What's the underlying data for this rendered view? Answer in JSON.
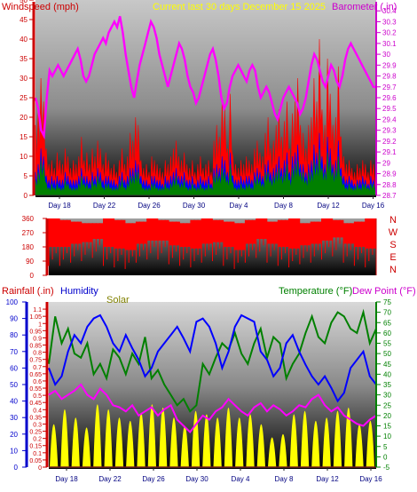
{
  "chart_data": [
    {
      "type": "line",
      "title": "Current last 30 days December 15 2025",
      "left_axis_title": "Windspeed (mph)",
      "right_axis_title": "Barometer (.in)",
      "x_ticks": [
        "Day 18",
        "Day 22",
        "Day 26",
        "Day 30",
        "Day 4",
        "Day 8",
        "Day 12",
        "Day 16"
      ],
      "y_left": {
        "min": 0,
        "max": 50,
        "ticks": [
          0,
          5,
          10,
          15,
          20,
          25,
          30,
          35,
          40,
          45,
          50
        ]
      },
      "y_right": {
        "min": 28.7,
        "max": 30.5,
        "ticks": [
          "28.7",
          "28.8",
          "28.9",
          "29",
          "29.1",
          "29.2",
          "29.3",
          "29.4",
          "29.5",
          "29.6",
          "29.7",
          "29.8",
          "29.9",
          "30",
          "30.1",
          "30.2",
          "30.3",
          "30.4"
        ]
      },
      "series": [
        {
          "name": "Wind gust",
          "axis": "left",
          "color": "#ff0000",
          "style": "filled-spiky",
          "values": [
            18,
            22,
            30,
            24,
            12,
            8,
            9,
            7,
            11,
            9,
            8,
            12,
            10,
            7,
            9,
            8,
            10,
            15,
            9,
            11,
            8,
            12,
            10,
            14,
            12,
            8,
            11,
            9,
            7,
            8,
            6,
            9,
            12,
            8,
            10,
            16,
            14,
            20,
            18,
            9,
            7,
            8,
            6,
            10,
            9,
            8,
            7,
            6,
            9,
            8,
            10,
            12,
            14,
            10,
            9,
            11,
            8,
            7,
            9,
            6,
            8,
            10,
            7,
            8,
            9,
            6,
            14,
            18,
            15,
            24,
            22,
            12,
            26,
            10,
            8,
            7,
            9,
            8,
            10,
            9,
            8,
            12,
            14,
            11,
            10,
            16,
            20,
            12,
            14,
            18,
            22,
            15,
            19,
            24,
            12,
            21,
            24,
            30,
            18,
            16,
            12,
            18,
            20,
            30,
            24,
            40,
            22,
            18,
            35,
            26,
            18,
            20,
            33,
            15,
            10,
            8,
            9,
            7,
            6,
            8,
            7,
            9,
            8,
            6,
            9,
            8
          ]
        },
        {
          "name": "Wind speed",
          "axis": "left",
          "color": "#0000ff",
          "style": "filled-spiky",
          "values": [
            6,
            8,
            12,
            10,
            5,
            4,
            5,
            4,
            5,
            4,
            4,
            6,
            5,
            4,
            4,
            4,
            5,
            7,
            5,
            5,
            4,
            6,
            5,
            7,
            6,
            4,
            5,
            5,
            4,
            4,
            3,
            5,
            6,
            4,
            5,
            7,
            7,
            9,
            8,
            5,
            4,
            4,
            3,
            5,
            5,
            4,
            4,
            3,
            5,
            4,
            5,
            6,
            7,
            5,
            5,
            6,
            4,
            4,
            5,
            3,
            4,
            5,
            4,
            4,
            5,
            3,
            7,
            8,
            7,
            10,
            9,
            6,
            11,
            5,
            4,
            4,
            5,
            4,
            5,
            5,
            4,
            6,
            7,
            6,
            5,
            8,
            9,
            6,
            7,
            8,
            10,
            7,
            9,
            11,
            6,
            10,
            11,
            13,
            8,
            8,
            6,
            8,
            9,
            13,
            11,
            16,
            10,
            8,
            15,
            12,
            8,
            9,
            14,
            7,
            5,
            4,
            5,
            4,
            3,
            4,
            4,
            5,
            4,
            3,
            5,
            4
          ]
        },
        {
          "name": "Wind average",
          "axis": "left",
          "color": "#008000",
          "style": "filled-spiky",
          "values": [
            4,
            6,
            9,
            8,
            3,
            2,
            3,
            2,
            3,
            2,
            2,
            4,
            3,
            2,
            2,
            2,
            3,
            5,
            3,
            3,
            2,
            4,
            3,
            5,
            4,
            2,
            3,
            3,
            2,
            2,
            2,
            3,
            4,
            2,
            3,
            5,
            5,
            6,
            6,
            3,
            2,
            2,
            2,
            3,
            3,
            2,
            2,
            2,
            3,
            2,
            3,
            4,
            5,
            3,
            3,
            4,
            2,
            2,
            3,
            2,
            2,
            3,
            2,
            2,
            3,
            2,
            5,
            6,
            5,
            7,
            6,
            4,
            8,
            3,
            2,
            2,
            3,
            2,
            3,
            3,
            2,
            4,
            5,
            4,
            3,
            6,
            6,
            4,
            5,
            6,
            7,
            5,
            6,
            8,
            4,
            7,
            8,
            9,
            6,
            6,
            4,
            6,
            6,
            9,
            8,
            12,
            7,
            6,
            11,
            9,
            6,
            7,
            10,
            5,
            3,
            2,
            3,
            2,
            2,
            3,
            2,
            3,
            3,
            2,
            3,
            3
          ]
        },
        {
          "name": "Barometer",
          "axis": "right",
          "color": "#ff00ff",
          "style": "line",
          "values": [
            29.6,
            29.5,
            29.3,
            29.25,
            29.6,
            29.85,
            29.8,
            29.85,
            29.9,
            29.85,
            29.8,
            29.85,
            29.9,
            29.95,
            30.0,
            30.05,
            29.95,
            29.8,
            29.75,
            29.8,
            29.9,
            30.0,
            30.05,
            30.1,
            30.15,
            30.1,
            30.2,
            30.25,
            30.3,
            30.25,
            30.35,
            30.2,
            30.0,
            29.85,
            29.7,
            29.6,
            29.75,
            29.9,
            30.0,
            30.1,
            30.2,
            30.3,
            30.25,
            30.15,
            30.0,
            29.9,
            29.8,
            29.7,
            29.8,
            29.9,
            30.0,
            30.1,
            30.05,
            29.95,
            29.8,
            29.7,
            29.65,
            29.55,
            29.6,
            29.7,
            29.8,
            29.9,
            30.0,
            30.05,
            29.95,
            29.8,
            29.6,
            29.5,
            29.55,
            29.7,
            29.8,
            29.85,
            29.9,
            29.85,
            29.8,
            29.75,
            29.85,
            29.9,
            29.85,
            29.7,
            29.6,
            29.65,
            29.7,
            29.65,
            29.55,
            29.45,
            29.4,
            29.5,
            29.6,
            29.65,
            29.7,
            29.65,
            29.6,
            29.55,
            29.45,
            29.5,
            29.6,
            29.75,
            29.9,
            30.0,
            29.95,
            29.85,
            29.75,
            29.7,
            29.8,
            29.9,
            29.85,
            29.75,
            29.7,
            29.8,
            29.95,
            30.05,
            30.1,
            30.05,
            30.0,
            29.95,
            29.9,
            29.85,
            29.8,
            29.75,
            29.7,
            29.7
          ]
        }
      ]
    },
    {
      "type": "scatter",
      "title": "",
      "y_ticks": [
        0,
        90,
        180,
        270,
        360
      ],
      "compass_labels": [
        "N",
        "W",
        "S",
        "E",
        "N"
      ],
      "series": [
        {
          "name": "Wind direction",
          "color": "#ff0000",
          "style": "dense-band",
          "lo": [
            180,
            180,
            200,
            210,
            230,
            180,
            170,
            160,
            200,
            220,
            220,
            190,
            180,
            170,
            200,
            210,
            180,
            160,
            200,
            230,
            200,
            180,
            170,
            190,
            200,
            220,
            240,
            200,
            180,
            170
          ],
          "hi": [
            360,
            350,
            340,
            330,
            330,
            360,
            350,
            330,
            340,
            360,
            350,
            340,
            330,
            350,
            360,
            350,
            340,
            330,
            350,
            360,
            340,
            350,
            360,
            330,
            340,
            360,
            350,
            330,
            340,
            360
          ]
        }
      ]
    },
    {
      "type": "line",
      "title": "",
      "left_axis_titles": [
        "Rainfall (.in)",
        "Humidity",
        "Solar"
      ],
      "right_axis_titles": [
        "Temperature (°F)",
        "Dew Point (°F)"
      ],
      "x_ticks": [
        "Day 18",
        "Day 22",
        "Day 26",
        "Day 30",
        "Day 4",
        "Day 8",
        "Day 12",
        "Day 16"
      ],
      "y_humidity": {
        "min": 0,
        "max": 100,
        "ticks": [
          0,
          10,
          20,
          30,
          40,
          50,
          60,
          70,
          80,
          90,
          100
        ]
      },
      "y_rain": {
        "min": 0,
        "max": 1.15,
        "ticks": [
          "0",
          "0.05",
          "0.1",
          "0.15",
          "0.2",
          "0.25",
          "0.3",
          "0.35",
          "0.4",
          "0.45",
          "0.5",
          "0.55",
          "0.6",
          "0.65",
          "0.7",
          "0.75",
          "0.8",
          "0.85",
          "0.9",
          "0.95",
          "1",
          "1.05",
          "1.1"
        ]
      },
      "y_temp": {
        "min": -5,
        "max": 75,
        "ticks": [
          "-5",
          "0",
          "5",
          "10",
          "15",
          "20",
          "25",
          "30",
          "35",
          "40",
          "45",
          "50",
          "55",
          "60",
          "65",
          "70",
          "75"
        ]
      },
      "series": [
        {
          "name": "Solar",
          "axis": "humidity",
          "color": "#ffff00",
          "style": "filled-daily",
          "values": [
            26,
            35,
            30,
            24,
            38,
            35,
            30,
            28,
            33,
            38,
            36,
            30,
            25,
            34,
            32,
            30,
            36,
            30,
            32,
            26,
            18,
            20,
            32,
            34,
            28,
            30,
            34,
            36,
            26,
            28
          ]
        },
        {
          "name": "Temperature",
          "axis": "temp",
          "color": "#008000",
          "style": "line",
          "values": [
            45,
            68,
            55,
            62,
            50,
            48,
            55,
            40,
            45,
            38,
            52,
            48,
            40,
            50,
            45,
            58,
            38,
            42,
            35,
            30,
            25,
            28,
            22,
            25,
            45,
            40,
            48,
            55,
            52,
            60,
            50,
            45,
            55,
            62,
            48,
            58,
            55,
            38,
            45,
            50,
            60,
            68,
            58,
            55,
            65,
            70,
            68,
            62,
            60,
            70,
            55,
            62
          ]
        },
        {
          "name": "Dew Point",
          "axis": "temp",
          "color": "#ff00ff",
          "style": "line",
          "values": [
            30,
            32,
            28,
            30,
            32,
            35,
            30,
            28,
            33,
            30,
            25,
            24,
            22,
            25,
            20,
            22,
            24,
            20,
            23,
            25,
            18,
            15,
            12,
            16,
            20,
            18,
            22,
            24,
            28,
            25,
            22,
            20,
            24,
            26,
            22,
            25,
            23,
            20,
            22,
            25,
            24,
            28,
            30,
            25,
            22,
            24,
            20,
            18,
            16,
            15,
            18,
            20
          ]
        },
        {
          "name": "Humidity",
          "axis": "humidity",
          "color": "#0000ff",
          "style": "line",
          "values": [
            60,
            50,
            55,
            70,
            80,
            75,
            85,
            90,
            92,
            85,
            75,
            70,
            80,
            72,
            65,
            55,
            60,
            70,
            75,
            80,
            85,
            78,
            70,
            88,
            90,
            85,
            75,
            60,
            70,
            85,
            92,
            90,
            88,
            70,
            65,
            55,
            60,
            75,
            80,
            70,
            62,
            55,
            50,
            55,
            48,
            40,
            45,
            60,
            65,
            70,
            55,
            50
          ]
        },
        {
          "name": "Rainfall",
          "axis": "rain",
          "color": "#ff0000",
          "style": "line",
          "values": [
            0,
            0,
            0,
            0,
            0,
            0,
            0,
            0,
            0,
            0,
            0,
            0,
            0,
            0,
            0,
            0,
            0,
            0,
            0,
            0,
            0,
            0,
            0,
            0,
            0,
            0,
            0,
            0,
            0,
            0,
            0,
            0,
            0,
            0,
            0,
            0,
            0,
            0,
            0,
            0,
            0,
            0,
            0,
            0,
            0,
            0,
            0,
            0,
            0,
            0,
            0,
            0
          ]
        }
      ]
    }
  ]
}
